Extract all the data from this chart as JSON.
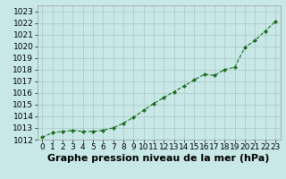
{
  "x": [
    0,
    1,
    2,
    3,
    4,
    5,
    6,
    7,
    8,
    9,
    10,
    11,
    12,
    13,
    14,
    15,
    16,
    17,
    18,
    19,
    20,
    21,
    22,
    23
  ],
  "y": [
    1012.2,
    1012.6,
    1012.7,
    1012.8,
    1012.7,
    1012.7,
    1012.8,
    1013.0,
    1013.4,
    1013.9,
    1014.5,
    1015.1,
    1015.6,
    1016.1,
    1016.6,
    1017.1,
    1017.6,
    1017.5,
    1018.0,
    1018.2,
    1019.9,
    1020.5,
    1021.3,
    1022.1
  ],
  "title": "Graphe pression niveau de la mer (hPa)",
  "xlim": [
    -0.5,
    23.5
  ],
  "ylim": [
    1012,
    1023.5
  ],
  "ytick_min": 1012,
  "ytick_max": 1023,
  "xticks": [
    0,
    1,
    2,
    3,
    4,
    5,
    6,
    7,
    8,
    9,
    10,
    11,
    12,
    13,
    14,
    15,
    16,
    17,
    18,
    19,
    20,
    21,
    22,
    23
  ],
  "line_color": "#1a6b1a",
  "marker_color": "#1a6b1a",
  "bg_color": "#c8e8e8",
  "grid_color": "#a8c8c8",
  "title_fontsize": 8,
  "tick_fontsize": 6.5,
  "linewidth": 0.8,
  "markersize": 2.2
}
